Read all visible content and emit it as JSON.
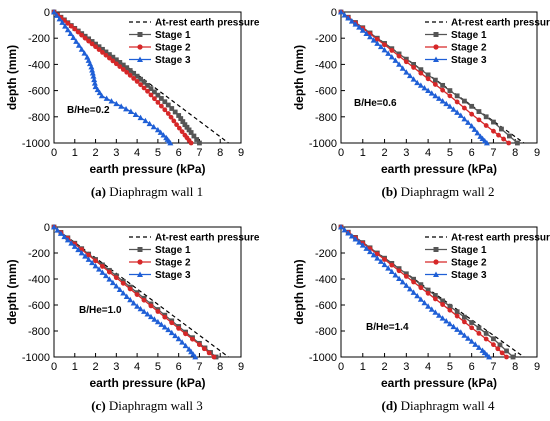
{
  "chart_data": [
    {
      "type": "line",
      "caption_letter": "(a)",
      "caption_text": "Diaphragm wall 1",
      "annotation": "B/He=0.2",
      "xlabel": "earth pressure (kPa)",
      "ylabel": "depth (mm)",
      "xlim": [
        0,
        9
      ],
      "ylim": [
        -1000,
        0
      ],
      "xticks": [
        "0",
        "1",
        "2",
        "3",
        "4",
        "5",
        "6",
        "7",
        "8",
        "9"
      ],
      "yticks": [
        "0",
        "-200",
        "-400",
        "-600",
        "-800",
        "-1000"
      ],
      "legend_position": "top-right",
      "legend": [
        "At-rest earth pressure",
        "Stage 1",
        "Stage 2",
        "Stage 3"
      ],
      "series": [
        {
          "name": "At-rest earth pressure",
          "style": "dash",
          "color": "#000000",
          "marker": "none",
          "points": [
            [
              0,
              0
            ],
            [
              8.4,
              -1000
            ]
          ]
        },
        {
          "name": "Stage 1",
          "color": "#555555",
          "marker": "square",
          "points": [
            [
              0,
              0
            ],
            [
              0.5,
              -60
            ],
            [
              1,
              -125
            ],
            [
              1.5,
              -185
            ],
            [
              2,
              -245
            ],
            [
              2.5,
              -305
            ],
            [
              3,
              -365
            ],
            [
              3.5,
              -425
            ],
            [
              4,
              -490
            ],
            [
              4.5,
              -560
            ],
            [
              5,
              -635
            ],
            [
              5.5,
              -710
            ],
            [
              6,
              -790
            ],
            [
              6.3,
              -860
            ],
            [
              6.6,
              -920
            ],
            [
              7,
              -1000
            ]
          ]
        },
        {
          "name": "Stage 2",
          "color": "#d62728",
          "marker": "circle",
          "points": [
            [
              0,
              0
            ],
            [
              0.5,
              -65
            ],
            [
              1,
              -130
            ],
            [
              1.5,
              -200
            ],
            [
              2,
              -265
            ],
            [
              2.5,
              -330
            ],
            [
              3,
              -395
            ],
            [
              3.5,
              -460
            ],
            [
              4,
              -530
            ],
            [
              4.5,
              -605
            ],
            [
              5,
              -690
            ],
            [
              5.5,
              -775
            ],
            [
              5.9,
              -860
            ],
            [
              6.3,
              -940
            ],
            [
              6.6,
              -1000
            ]
          ]
        },
        {
          "name": "Stage 3",
          "color": "#1f5fd6",
          "marker": "triangle",
          "points": [
            [
              0,
              0
            ],
            [
              0.4,
              -80
            ],
            [
              0.8,
              -165
            ],
            [
              1.2,
              -255
            ],
            [
              1.6,
              -345
            ],
            [
              1.8,
              -420
            ],
            [
              1.9,
              -490
            ],
            [
              2,
              -570
            ],
            [
              2.3,
              -640
            ],
            [
              3,
              -700
            ],
            [
              3.7,
              -760
            ],
            [
              4.4,
              -830
            ],
            [
              5,
              -900
            ],
            [
              5.4,
              -960
            ],
            [
              5.6,
              -1000
            ]
          ]
        }
      ]
    },
    {
      "type": "line",
      "caption_letter": "(b)",
      "caption_text": "Diaphragm wall 2",
      "annotation": "B/He=0.6",
      "xlabel": "earth pressure (kPa)",
      "ylabel": "depth (mm)",
      "xlim": [
        0,
        9
      ],
      "ylim": [
        -1000,
        0
      ],
      "xticks": [
        "0",
        "1",
        "2",
        "3",
        "4",
        "5",
        "6",
        "7",
        "8",
        "9"
      ],
      "yticks": [
        "0",
        "-200",
        "-400",
        "-600",
        "-800",
        "-1000"
      ],
      "legend_position": "top-right",
      "legend": [
        "At-rest earth pressure",
        "Stage 1",
        "Stage 2",
        "Stage 3"
      ],
      "series": [
        {
          "name": "At-rest earth pressure",
          "style": "dash",
          "color": "#000000",
          "marker": "none",
          "points": [
            [
              0,
              0
            ],
            [
              8.4,
              -1000
            ]
          ]
        },
        {
          "name": "Stage 1",
          "color": "#555555",
          "marker": "square",
          "points": [
            [
              0,
              0
            ],
            [
              1,
              -120
            ],
            [
              2,
              -240
            ],
            [
              3,
              -360
            ],
            [
              4,
              -480
            ],
            [
              5,
              -600
            ],
            [
              6,
              -720
            ],
            [
              7,
              -840
            ],
            [
              8.1,
              -1000
            ]
          ]
        },
        {
          "name": "Stage 2",
          "color": "#d62728",
          "marker": "circle",
          "points": [
            [
              0,
              0
            ],
            [
              1,
              -125
            ],
            [
              2,
              -250
            ],
            [
              3,
              -380
            ],
            [
              4,
              -510
            ],
            [
              5,
              -640
            ],
            [
              6,
              -780
            ],
            [
              7,
              -910
            ],
            [
              7.7,
              -1000
            ]
          ]
        },
        {
          "name": "Stage 3",
          "color": "#1f5fd6",
          "marker": "triangle",
          "points": [
            [
              0,
              0
            ],
            [
              0.5,
              -70
            ],
            [
              1,
              -140
            ],
            [
              1.5,
              -215
            ],
            [
              2,
              -290
            ],
            [
              2.5,
              -370
            ],
            [
              3,
              -460
            ],
            [
              3.5,
              -540
            ],
            [
              4,
              -600
            ],
            [
              4.5,
              -660
            ],
            [
              5,
              -720
            ],
            [
              5.5,
              -790
            ],
            [
              6,
              -870
            ],
            [
              6.4,
              -950
            ],
            [
              6.7,
              -1000
            ]
          ]
        }
      ]
    },
    {
      "type": "line",
      "caption_letter": "(c)",
      "caption_text": "Diaphragm wall 3",
      "annotation": "B/He=1.0",
      "xlabel": "earth pressure (kPa)",
      "ylabel": "depth (mm)",
      "xlim": [
        0,
        9
      ],
      "ylim": [
        -1000,
        0
      ],
      "xticks": [
        "0",
        "1",
        "2",
        "3",
        "4",
        "5",
        "6",
        "7",
        "8",
        "9"
      ],
      "yticks": [
        "0",
        "-200",
        "-400",
        "-600",
        "-800",
        "-1000"
      ],
      "legend_position": "top-right",
      "legend": [
        "At-rest earth pressure",
        "Stage 1",
        "Stage 2",
        "Stage 3"
      ],
      "series": [
        {
          "name": "At-rest earth pressure",
          "style": "dash",
          "color": "#000000",
          "marker": "none",
          "points": [
            [
              0,
              0
            ],
            [
              8.4,
              -1000
            ]
          ]
        },
        {
          "name": "Stage 1",
          "color": "#555555",
          "marker": "square",
          "points": [
            [
              0,
              0
            ],
            [
              1,
              -125
            ],
            [
              2,
              -250
            ],
            [
              3,
              -375
            ],
            [
              4,
              -505
            ],
            [
              5,
              -635
            ],
            [
              6,
              -765
            ],
            [
              7,
              -895
            ],
            [
              7.8,
              -1000
            ]
          ]
        },
        {
          "name": "Stage 2",
          "color": "#d62728",
          "marker": "circle",
          "points": [
            [
              0,
              0
            ],
            [
              1,
              -130
            ],
            [
              2,
              -260
            ],
            [
              3,
              -390
            ],
            [
              4,
              -520
            ],
            [
              5,
              -650
            ],
            [
              6,
              -780
            ],
            [
              7,
              -905
            ],
            [
              7.7,
              -1000
            ]
          ]
        },
        {
          "name": "Stage 3",
          "color": "#1f5fd6",
          "marker": "triangle",
          "points": [
            [
              0,
              0
            ],
            [
              0.5,
              -75
            ],
            [
              1,
              -150
            ],
            [
              1.5,
              -225
            ],
            [
              2,
              -300
            ],
            [
              2.5,
              -375
            ],
            [
              3,
              -455
            ],
            [
              3.5,
              -535
            ],
            [
              4,
              -610
            ],
            [
              4.5,
              -670
            ],
            [
              5,
              -730
            ],
            [
              5.5,
              -790
            ],
            [
              6,
              -860
            ],
            [
              6.5,
              -940
            ],
            [
              6.8,
              -1000
            ]
          ]
        }
      ]
    },
    {
      "type": "line",
      "caption_letter": "(d)",
      "caption_text": "Diaphragm wall 4",
      "annotation": "B/He=1.4",
      "xlabel": "earth pressure (kPa)",
      "ylabel": "depth (mm)",
      "xlim": [
        0,
        9
      ],
      "ylim": [
        -1000,
        0
      ],
      "xticks": [
        "0",
        "1",
        "2",
        "3",
        "4",
        "5",
        "6",
        "7",
        "8",
        "9"
      ],
      "yticks": [
        "0",
        "-200",
        "-400",
        "-600",
        "-800",
        "-1000"
      ],
      "legend_position": "top-right",
      "legend": [
        "At-rest earth pressure",
        "Stage 1",
        "Stage 2",
        "Stage 3"
      ],
      "series": [
        {
          "name": "At-rest earth pressure",
          "style": "dash",
          "color": "#000000",
          "marker": "none",
          "points": [
            [
              0,
              0
            ],
            [
              8.4,
              -1000
            ]
          ]
        },
        {
          "name": "Stage 1",
          "color": "#555555",
          "marker": "square",
          "points": [
            [
              0,
              0
            ],
            [
              1,
              -120
            ],
            [
              2,
              -240
            ],
            [
              3,
              -360
            ],
            [
              4,
              -485
            ],
            [
              5,
              -610
            ],
            [
              6,
              -735
            ],
            [
              7,
              -860
            ],
            [
              7.9,
              -1000
            ]
          ]
        },
        {
          "name": "Stage 2",
          "color": "#d62728",
          "marker": "circle",
          "points": [
            [
              0,
              0
            ],
            [
              1,
              -125
            ],
            [
              2,
              -250
            ],
            [
              3,
              -380
            ],
            [
              4,
              -510
            ],
            [
              5,
              -640
            ],
            [
              6,
              -775
            ],
            [
              7,
              -905
            ],
            [
              7.6,
              -1000
            ]
          ]
        },
        {
          "name": "Stage 3",
          "color": "#1f5fd6",
          "marker": "triangle",
          "points": [
            [
              0,
              0
            ],
            [
              0.5,
              -70
            ],
            [
              1,
              -140
            ],
            [
              1.5,
              -215
            ],
            [
              2,
              -290
            ],
            [
              2.5,
              -370
            ],
            [
              3,
              -450
            ],
            [
              3.5,
              -530
            ],
            [
              4,
              -610
            ],
            [
              4.5,
              -680
            ],
            [
              5,
              -745
            ],
            [
              5.5,
              -810
            ],
            [
              6,
              -880
            ],
            [
              6.5,
              -950
            ],
            [
              6.8,
              -1000
            ]
          ]
        }
      ]
    }
  ]
}
